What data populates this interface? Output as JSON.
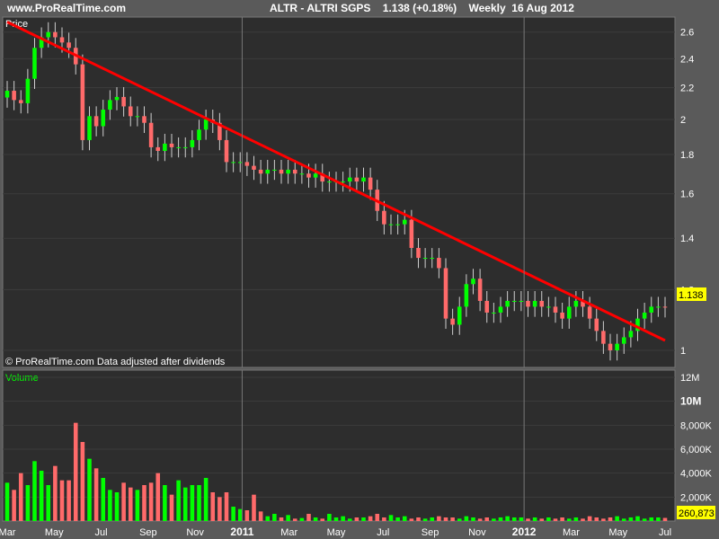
{
  "header": {
    "site": "www.ProRealTime.com",
    "title": "ALTR - ALTRI SGPS    1.138 (+0.18%)    Weekly  16 Aug 2012"
  },
  "price_panel": {
    "label": "Price",
    "credit": "© ProRealTime.com  Data adjusted after dividends",
    "last_value": "1.138"
  },
  "volume_panel": {
    "label": "Volume",
    "last_value": "260,873"
  },
  "colors": {
    "up": "#00ff00",
    "down": "#ff6a6a",
    "trendline": "#ff0000",
    "panel_bg": "#2d2d2d",
    "label_bg": "#ffff00"
  },
  "chart_data": [
    {
      "type": "candlestick",
      "title": "Price",
      "frequency": "weekly",
      "y_scale": "log",
      "y_ticks": [
        "2.6",
        "2.4",
        "2.2",
        "2",
        "1.8",
        "1.6",
        "1.4",
        "1.2",
        "1"
      ],
      "x_ticks": [
        "Mar",
        "May",
        "Jul",
        "Sep",
        "Nov",
        "2011",
        "Mar",
        "May",
        "Jul",
        "Sep",
        "Nov",
        "2012",
        "Mar",
        "May",
        "Jul"
      ],
      "close": [
        2.18,
        2.12,
        2.1,
        2.26,
        2.48,
        2.56,
        2.6,
        2.56,
        2.52,
        2.48,
        2.36,
        1.88,
        2.02,
        1.96,
        2.06,
        2.12,
        2.14,
        2.08,
        2.02,
        2.02,
        1.98,
        1.84,
        1.82,
        1.86,
        1.84,
        1.84,
        1.84,
        1.88,
        1.94,
        2.0,
        1.98,
        1.88,
        1.76,
        1.76,
        1.76,
        1.74,
        1.72,
        1.7,
        1.72,
        1.72,
        1.7,
        1.72,
        1.7,
        1.7,
        1.68,
        1.7,
        1.66,
        1.66,
        1.66,
        1.66,
        1.68,
        1.66,
        1.68,
        1.62,
        1.52,
        1.46,
        1.46,
        1.46,
        1.48,
        1.36,
        1.32,
        1.32,
        1.32,
        1.28,
        1.1,
        1.08,
        1.14,
        1.22,
        1.24,
        1.16,
        1.12,
        1.12,
        1.14,
        1.16,
        1.16,
        1.16,
        1.14,
        1.16,
        1.14,
        1.14,
        1.12,
        1.1,
        1.14,
        1.16,
        1.14,
        1.1,
        1.06,
        1.02,
        1.0,
        1.02,
        1.04,
        1.06,
        1.1,
        1.12,
        1.14,
        1.14,
        1.138
      ],
      "volume": [
        3200000,
        2600000,
        4000000,
        3000000,
        5000000,
        4200000,
        3000000,
        4600000,
        3400000,
        3400000,
        8200000,
        6600000,
        5200000,
        4400000,
        3600000,
        2600000,
        2400000,
        3200000,
        2800000,
        2600000,
        3000000,
        3200000,
        4000000,
        3000000,
        2200000,
        3400000,
        2800000,
        3000000,
        3000000,
        3600000,
        2400000,
        2000000,
        2400000,
        1200000,
        1000000,
        900000,
        2200000,
        800000,
        400000,
        600000,
        300000,
        500000,
        200000,
        250000,
        600000,
        300000,
        200000,
        600000,
        300000,
        400000,
        200000,
        300000,
        300000,
        400000,
        600000,
        300000,
        500000,
        300000,
        400000,
        200000,
        300000,
        200000,
        300000,
        400000,
        300000,
        300000,
        200000,
        400000,
        300000,
        200000,
        300000,
        200000,
        300000,
        400000,
        300000,
        300000,
        200000,
        300000,
        200000,
        300000,
        200000,
        300000,
        200000,
        300000,
        200000,
        400000,
        300000,
        200000,
        300000,
        400000,
        200000,
        300000,
        400000,
        200000,
        300000,
        300000,
        260873
      ],
      "trendline": {
        "from": {
          "week": 0,
          "price": 2.68
        },
        "to": {
          "week": 96,
          "price": 1.03
        }
      }
    },
    {
      "type": "bar",
      "title": "Volume",
      "y_ticks": [
        "12M",
        "10M",
        "8,000K",
        "6,000K",
        "4,000K",
        "2,000K"
      ]
    }
  ]
}
